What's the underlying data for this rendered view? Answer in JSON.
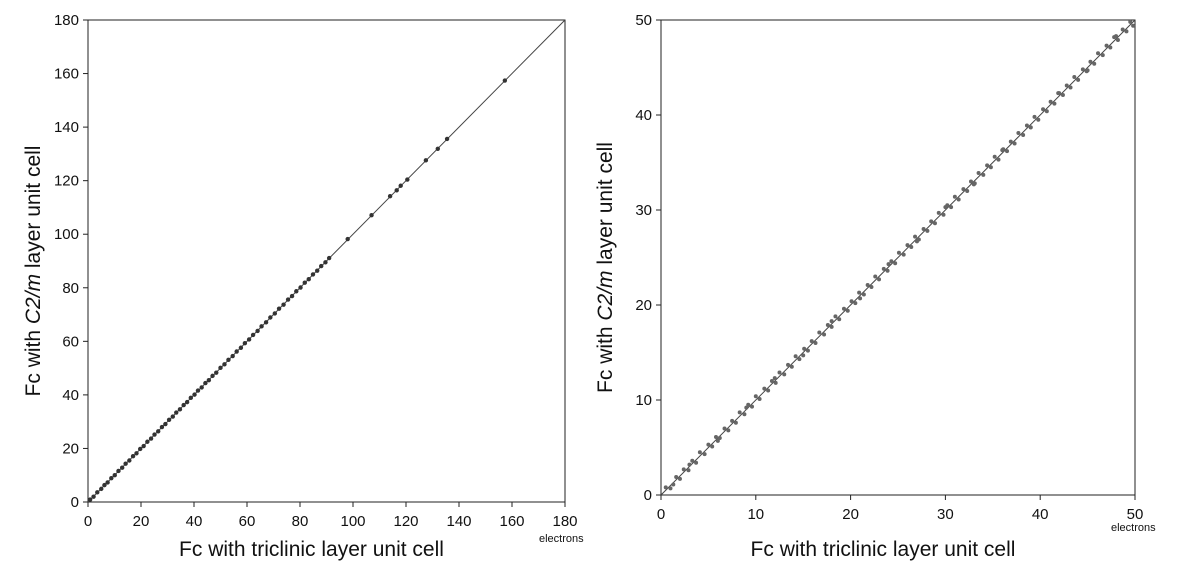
{
  "chart_data": [
    {
      "type": "scatter",
      "xlabel": "Fc with triclinic layer unit cell",
      "ylabel_prefix": "Fc with ",
      "ylabel_italic": "C2/m",
      "ylabel_suffix": " layer unit cell",
      "x_unit": "electrons",
      "xlim": [
        0,
        180
      ],
      "ylim": [
        0,
        180
      ],
      "x_ticks": [
        "0",
        "20",
        "40",
        "60",
        "80",
        "100",
        "120",
        "140",
        "160",
        "180"
      ],
      "y_ticks": [
        "0",
        "20",
        "40",
        "60",
        "80",
        "100",
        "120",
        "140",
        "160",
        "180"
      ],
      "grid": false,
      "reference_line": [
        [
          0,
          0
        ],
        [
          180,
          180
        ]
      ],
      "marker_color": "#333333",
      "points": [
        [
          0.8,
          0.9
        ],
        [
          2.1,
          2.0
        ],
        [
          3.5,
          3.6
        ],
        [
          5.0,
          4.9
        ],
        [
          6.2,
          6.3
        ],
        [
          7.4,
          7.3
        ],
        [
          8.8,
          8.9
        ],
        [
          10.1,
          10.0
        ],
        [
          11.5,
          11.6
        ],
        [
          12.9,
          12.8
        ],
        [
          14.2,
          14.3
        ],
        [
          15.6,
          15.5
        ],
        [
          17.0,
          17.1
        ],
        [
          18.3,
          18.2
        ],
        [
          19.7,
          19.8
        ],
        [
          21.0,
          20.9
        ],
        [
          22.4,
          22.5
        ],
        [
          23.8,
          23.7
        ],
        [
          25.1,
          25.2
        ],
        [
          26.5,
          26.4
        ],
        [
          27.9,
          28.0
        ],
        [
          29.2,
          29.1
        ],
        [
          30.6,
          30.7
        ],
        [
          32.0,
          31.9
        ],
        [
          33.3,
          33.4
        ],
        [
          34.7,
          34.6
        ],
        [
          36.1,
          36.2
        ],
        [
          37.4,
          37.3
        ],
        [
          38.8,
          38.9
        ],
        [
          40.2,
          40.1
        ],
        [
          41.5,
          41.6
        ],
        [
          42.9,
          42.8
        ],
        [
          44.3,
          44.4
        ],
        [
          45.6,
          45.5
        ],
        [
          47.0,
          47.1
        ],
        [
          48.4,
          48.3
        ],
        [
          50.0,
          50.1
        ],
        [
          51.5,
          51.4
        ],
        [
          53.0,
          53.1
        ],
        [
          54.6,
          54.5
        ],
        [
          56.1,
          56.2
        ],
        [
          57.7,
          57.6
        ],
        [
          59.2,
          59.3
        ],
        [
          60.8,
          60.7
        ],
        [
          62.3,
          62.4
        ],
        [
          64.0,
          63.9
        ],
        [
          65.5,
          65.6
        ],
        [
          67.2,
          67.1
        ],
        [
          68.8,
          68.9
        ],
        [
          70.5,
          70.4
        ],
        [
          72.1,
          72.2
        ],
        [
          73.8,
          73.7
        ],
        [
          75.5,
          75.6
        ],
        [
          77.0,
          76.9
        ],
        [
          78.6,
          78.7
        ],
        [
          80.2,
          80.1
        ],
        [
          81.8,
          81.9
        ],
        [
          83.3,
          83.2
        ],
        [
          84.9,
          85.0
        ],
        [
          86.5,
          86.4
        ],
        [
          88.0,
          88.1
        ],
        [
          89.6,
          89.5
        ],
        [
          91.0,
          91.1
        ],
        [
          98.0,
          98.2
        ],
        [
          107.0,
          107.1
        ],
        [
          114.0,
          114.2
        ],
        [
          116.5,
          116.4
        ],
        [
          118.0,
          118.1
        ],
        [
          120.5,
          120.4
        ],
        [
          127.5,
          127.6
        ],
        [
          132.0,
          131.9
        ],
        [
          135.5,
          135.6
        ],
        [
          157.3,
          157.4
        ]
      ]
    },
    {
      "type": "scatter",
      "xlabel": "Fc with triclinic layer unit cell",
      "ylabel_prefix": "Fc with ",
      "ylabel_italic": "C2/m",
      "ylabel_suffix": " layer unit cell",
      "x_unit": "electrons",
      "xlim": [
        0,
        50
      ],
      "ylim": [
        0,
        50
      ],
      "x_ticks": [
        "0",
        "10",
        "20",
        "30",
        "40",
        "50"
      ],
      "y_ticks": [
        "0",
        "10",
        "20",
        "30",
        "40",
        "50"
      ],
      "grid": false,
      "reference_line": [
        [
          0,
          0
        ],
        [
          50,
          50
        ]
      ],
      "marker_color": "#666666",
      "points": [
        [
          0.5,
          0.8
        ],
        [
          1.0,
          0.7
        ],
        [
          1.6,
          1.9
        ],
        [
          2.0,
          1.7
        ],
        [
          2.4,
          2.7
        ],
        [
          2.9,
          2.6
        ],
        [
          3.3,
          3.6
        ],
        [
          3.7,
          3.4
        ],
        [
          4.1,
          4.5
        ],
        [
          4.6,
          4.3
        ],
        [
          5.0,
          5.3
        ],
        [
          5.4,
          5.1
        ],
        [
          5.8,
          6.1
        ],
        [
          6.2,
          6.0
        ],
        [
          6.7,
          7.0
        ],
        [
          7.1,
          6.8
        ],
        [
          7.5,
          7.8
        ],
        [
          7.9,
          7.6
        ],
        [
          8.3,
          8.7
        ],
        [
          8.8,
          8.5
        ],
        [
          9.2,
          9.5
        ],
        [
          9.6,
          9.3
        ],
        [
          10.0,
          10.4
        ],
        [
          10.4,
          10.1
        ],
        [
          10.9,
          11.2
        ],
        [
          11.3,
          11.0
        ],
        [
          11.7,
          12.0
        ],
        [
          12.1,
          11.8
        ],
        [
          12.5,
          12.9
        ],
        [
          13.0,
          12.7
        ],
        [
          13.4,
          13.7
        ],
        [
          13.8,
          13.5
        ],
        [
          14.2,
          14.6
        ],
        [
          14.6,
          14.3
        ],
        [
          15.1,
          15.4
        ],
        [
          15.5,
          15.2
        ],
        [
          15.9,
          16.2
        ],
        [
          16.3,
          16.0
        ],
        [
          16.7,
          17.1
        ],
        [
          17.2,
          16.9
        ],
        [
          17.6,
          17.9
        ],
        [
          18.0,
          17.7
        ],
        [
          18.4,
          18.8
        ],
        [
          18.8,
          18.5
        ],
        [
          19.3,
          19.6
        ],
        [
          19.7,
          19.4
        ],
        [
          20.1,
          20.4
        ],
        [
          20.5,
          20.2
        ],
        [
          20.9,
          21.3
        ],
        [
          21.4,
          21.1
        ],
        [
          21.8,
          22.1
        ],
        [
          22.2,
          21.9
        ],
        [
          22.6,
          23.0
        ],
        [
          23.0,
          22.7
        ],
        [
          23.5,
          23.8
        ],
        [
          23.9,
          23.6
        ],
        [
          24.3,
          24.6
        ],
        [
          24.7,
          24.4
        ],
        [
          25.1,
          25.5
        ],
        [
          25.6,
          25.3
        ],
        [
          26.0,
          26.3
        ],
        [
          26.4,
          26.1
        ],
        [
          26.8,
          27.2
        ],
        [
          27.2,
          26.9
        ],
        [
          27.7,
          28.0
        ],
        [
          28.1,
          27.8
        ],
        [
          28.5,
          28.8
        ],
        [
          28.9,
          28.6
        ],
        [
          29.3,
          29.7
        ],
        [
          29.8,
          29.5
        ],
        [
          30.2,
          30.5
        ],
        [
          30.6,
          30.3
        ],
        [
          31.0,
          31.4
        ],
        [
          31.4,
          31.1
        ],
        [
          31.9,
          32.2
        ],
        [
          32.3,
          32.0
        ],
        [
          32.7,
          33.0
        ],
        [
          33.1,
          32.8
        ],
        [
          33.5,
          33.9
        ],
        [
          34.0,
          33.7
        ],
        [
          34.4,
          34.7
        ],
        [
          34.8,
          34.5
        ],
        [
          35.2,
          35.6
        ],
        [
          35.6,
          35.3
        ],
        [
          36.1,
          36.4
        ],
        [
          36.5,
          36.2
        ],
        [
          36.9,
          37.2
        ],
        [
          37.3,
          37.0
        ],
        [
          37.7,
          38.1
        ],
        [
          38.2,
          37.9
        ],
        [
          38.6,
          38.9
        ],
        [
          39.0,
          38.7
        ],
        [
          39.4,
          39.8
        ],
        [
          39.8,
          39.5
        ],
        [
          40.3,
          40.6
        ],
        [
          40.7,
          40.4
        ],
        [
          41.1,
          41.4
        ],
        [
          41.5,
          41.2
        ],
        [
          41.9,
          42.3
        ],
        [
          42.4,
          42.1
        ],
        [
          42.8,
          43.1
        ],
        [
          43.2,
          42.9
        ],
        [
          43.6,
          44.0
        ],
        [
          44.0,
          43.7
        ],
        [
          44.5,
          44.8
        ],
        [
          44.9,
          44.6
        ],
        [
          45.3,
          45.6
        ],
        [
          45.7,
          45.4
        ],
        [
          46.1,
          46.5
        ],
        [
          46.6,
          46.3
        ],
        [
          47.0,
          47.3
        ],
        [
          47.4,
          47.1
        ],
        [
          47.8,
          48.2
        ],
        [
          48.2,
          47.9
        ],
        [
          48.7,
          49.0
        ],
        [
          49.1,
          48.8
        ],
        [
          49.5,
          49.8
        ],
        [
          49.8,
          49.4
        ],
        [
          1.3,
          1.1
        ],
        [
          3.0,
          3.2
        ],
        [
          6.0,
          5.7
        ],
        [
          9.0,
          9.2
        ],
        [
          12.0,
          12.3
        ],
        [
          15.0,
          14.7
        ],
        [
          18.0,
          18.3
        ],
        [
          21.0,
          20.7
        ],
        [
          24.0,
          24.3
        ],
        [
          27.0,
          26.7
        ],
        [
          30.0,
          30.3
        ],
        [
          33.0,
          32.7
        ],
        [
          36.0,
          36.3
        ],
        [
          39.0,
          38.7
        ],
        [
          42.0,
          42.3
        ],
        [
          45.0,
          44.7
        ],
        [
          48.0,
          48.3
        ]
      ]
    }
  ]
}
